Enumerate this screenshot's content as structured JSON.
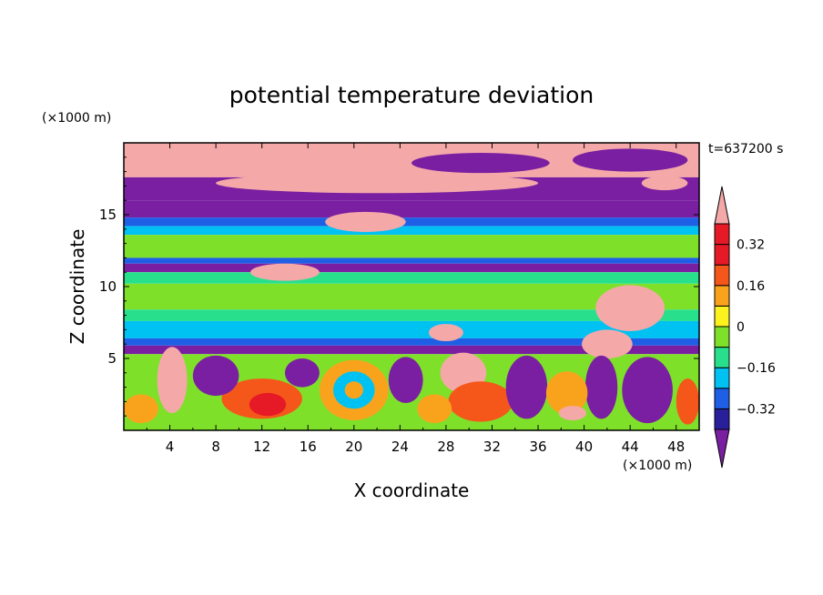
{
  "chart_data": {
    "type": "heatmap",
    "title": "potential temperature deviation",
    "xlabel": "X coordinate",
    "ylabel": "Z coordinate",
    "x_unit": "(×1000 m)",
    "y_unit": "(×1000 m)",
    "time_label": "t=637200 s",
    "xlim": [
      0,
      50
    ],
    "ylim": [
      0,
      20
    ],
    "x_ticks": [
      4,
      8,
      12,
      16,
      20,
      24,
      28,
      32,
      36,
      40,
      44,
      48
    ],
    "y_ticks": [
      5,
      10,
      15
    ],
    "colorbar": {
      "levels": [
        -0.4,
        -0.32,
        -0.24,
        -0.16,
        -0.08,
        0,
        0.08,
        0.16,
        0.24,
        0.32,
        0.4
      ],
      "labeled_levels": [
        0.32,
        0.16,
        0,
        -0.16,
        -0.32
      ],
      "tick_labels": [
        "0.32",
        "0.16",
        "0",
        "−0.16",
        "−0.32"
      ],
      "colors": [
        "#7a1fa2",
        "#2a1f9b",
        "#1e5fe6",
        "#00c2f2",
        "#28e08c",
        "#7fe02a",
        "#fbf21e",
        "#f9a31c",
        "#f5571b",
        "#e61a26",
        "#f5a8a8"
      ],
      "extend": "both"
    },
    "bands": [
      {
        "z_from": 17.6,
        "z_to": 20.0,
        "value": 0.45
      },
      {
        "z_from": 16.0,
        "z_to": 17.6,
        "value": -0.45
      },
      {
        "z_from": 14.8,
        "z_to": 16.0,
        "value": -0.35
      },
      {
        "z_from": 14.2,
        "z_to": 14.8,
        "value": -0.2
      },
      {
        "z_from": 13.6,
        "z_to": 14.2,
        "value": -0.1
      },
      {
        "z_from": 12.0,
        "z_to": 13.6,
        "value": 0.0
      },
      {
        "z_from": 11.6,
        "z_to": 12.0,
        "value": -0.2
      },
      {
        "z_from": 11.0,
        "z_to": 11.6,
        "value": -0.35
      },
      {
        "z_from": 10.2,
        "z_to": 11.0,
        "value": -0.05
      },
      {
        "z_from": 8.4,
        "z_to": 10.2,
        "value": 0.04
      },
      {
        "z_from": 7.6,
        "z_to": 8.4,
        "value": -0.05
      },
      {
        "z_from": 6.4,
        "z_to": 7.6,
        "value": -0.12
      },
      {
        "z_from": 5.9,
        "z_to": 6.4,
        "value": -0.2
      },
      {
        "z_from": 5.3,
        "z_to": 5.9,
        "value": -0.45
      },
      {
        "z_from": 0.0,
        "z_to": 5.3,
        "value": 0.0
      }
    ],
    "features": [
      {
        "x": 6,
        "z": 18.8,
        "rx": 5,
        "rz": 0.8,
        "value": 0.45
      },
      {
        "x": 22,
        "z": 17.2,
        "rx": 14,
        "rz": 0.7,
        "value": 0.45
      },
      {
        "x": 31,
        "z": 18.6,
        "rx": 6,
        "rz": 0.7,
        "value": -0.45
      },
      {
        "x": 44,
        "z": 18.8,
        "rx": 5,
        "rz": 0.8,
        "value": -0.45
      },
      {
        "x": 47,
        "z": 17.2,
        "rx": 2,
        "rz": 0.5,
        "value": 0.45
      },
      {
        "x": 21,
        "z": 14.5,
        "rx": 3.5,
        "rz": 0.7,
        "value": 0.45
      },
      {
        "x": 14,
        "z": 11.0,
        "rx": 3,
        "rz": 0.6,
        "value": 0.45
      },
      {
        "x": 44,
        "z": 8.5,
        "rx": 3,
        "rz": 1.6,
        "value": 0.45
      },
      {
        "x": 42,
        "z": 6.0,
        "rx": 2.2,
        "rz": 1.0,
        "value": 0.45
      },
      {
        "x": 28,
        "z": 6.8,
        "rx": 1.5,
        "rz": 0.6,
        "value": 0.45
      },
      {
        "x": 4.2,
        "z": 3.5,
        "rx": 1.3,
        "rz": 2.3,
        "value": 0.45
      },
      {
        "x": 29.5,
        "z": 4.0,
        "rx": 2.0,
        "rz": 1.4,
        "value": 0.45
      },
      {
        "x": 20,
        "z": 2.8,
        "rx": 3,
        "rz": 2.1,
        "value": 0.16
      },
      {
        "x": 20,
        "z": 2.8,
        "rx": 1.8,
        "rz": 1.3,
        "value": -0.12
      },
      {
        "x": 20,
        "z": 2.8,
        "rx": 0.8,
        "rz": 0.6,
        "value": 0.16
      },
      {
        "x": 12,
        "z": 2.2,
        "rx": 3.5,
        "rz": 1.4,
        "value": 0.25
      },
      {
        "x": 12.5,
        "z": 1.8,
        "rx": 1.6,
        "rz": 0.8,
        "value": 0.35
      },
      {
        "x": 31,
        "z": 2.0,
        "rx": 2.8,
        "rz": 1.4,
        "value": 0.3
      },
      {
        "x": 35,
        "z": 3.0,
        "rx": 1.8,
        "rz": 2.2,
        "value": -0.45
      },
      {
        "x": 24.5,
        "z": 3.5,
        "rx": 1.5,
        "rz": 1.6,
        "value": -0.45
      },
      {
        "x": 41.5,
        "z": 3.0,
        "rx": 1.4,
        "rz": 2.2,
        "value": -0.45
      },
      {
        "x": 45.5,
        "z": 2.8,
        "rx": 2.2,
        "rz": 2.3,
        "value": -0.45
      },
      {
        "x": 8,
        "z": 3.8,
        "rx": 2,
        "rz": 1.4,
        "value": -0.45
      },
      {
        "x": 38.5,
        "z": 2.6,
        "rx": 1.8,
        "rz": 1.5,
        "value": 0.16
      },
      {
        "x": 39,
        "z": 1.2,
        "rx": 1.2,
        "rz": 0.5,
        "value": 0.45
      },
      {
        "x": 15.5,
        "z": 4.0,
        "rx": 1.5,
        "rz": 1.0,
        "value": -0.45
      },
      {
        "x": 1.5,
        "z": 1.5,
        "rx": 1.5,
        "rz": 1.0,
        "value": 0.16
      },
      {
        "x": 27,
        "z": 1.5,
        "rx": 1.5,
        "rz": 1.0,
        "value": 0.16
      },
      {
        "x": 49,
        "z": 2.0,
        "rx": 1.0,
        "rz": 1.6,
        "value": 0.3
      }
    ]
  }
}
